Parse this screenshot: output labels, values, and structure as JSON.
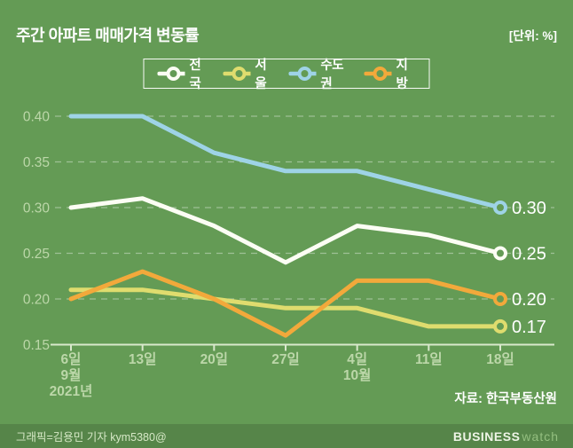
{
  "header": {
    "title": "주간 아파트 매매가격 변동률",
    "unit": "[단위: %]"
  },
  "colors": {
    "background": "#649b55",
    "footer_background": "#568549",
    "grid_line": "#ffffff",
    "axis_line": "#d9e8cc",
    "tick_label": "#bcd7a9",
    "value_label": "#ffffff"
  },
  "chart_data": {
    "type": "line",
    "title": "주간 아파트 매매가격 변동률",
    "unit": "%",
    "x": [
      "6일",
      "13일",
      "20일",
      "27일",
      "4일",
      "11일",
      "18일"
    ],
    "x_sub": [
      {
        "index": 0,
        "lines": [
          "9월",
          "2021년"
        ]
      },
      {
        "index": 4,
        "lines": [
          "10월"
        ]
      }
    ],
    "series": [
      {
        "name": "전국",
        "slug": "nationwide",
        "color": "#fcfdf4",
        "values": [
          0.3,
          0.31,
          0.28,
          0.24,
          0.28,
          0.27,
          0.25
        ],
        "end_label": "0.25"
      },
      {
        "name": "서울",
        "slug": "seoul",
        "color": "#dfdc6e",
        "values": [
          0.21,
          0.21,
          0.2,
          0.19,
          0.19,
          0.17,
          0.17
        ],
        "end_label": "0.17"
      },
      {
        "name": "수도권",
        "slug": "sudogwon",
        "color": "#9ed3e6",
        "values": [
          0.4,
          0.4,
          0.36,
          0.34,
          0.34,
          0.32,
          0.3
        ],
        "end_label": "0.30"
      },
      {
        "name": "지방",
        "slug": "jibang",
        "color": "#f2a93b",
        "values": [
          0.2,
          0.23,
          0.2,
          0.16,
          0.22,
          0.22,
          0.2
        ],
        "end_label": "0.20"
      }
    ],
    "draw_order": [
      1,
      0,
      2,
      3
    ],
    "ylim": [
      0.15,
      0.4
    ],
    "yticks": [
      "0.40",
      "0.35",
      "0.30",
      "0.25",
      "0.20",
      "0.15"
    ],
    "grid": "dashed horizontal",
    "legend_position": "top-center"
  },
  "source": "자료: 한국부동산원",
  "footer": {
    "credit": "그래픽=김용민 기자 kym5380@",
    "brand_bold": "BUSINESS",
    "brand_light": "watch"
  }
}
